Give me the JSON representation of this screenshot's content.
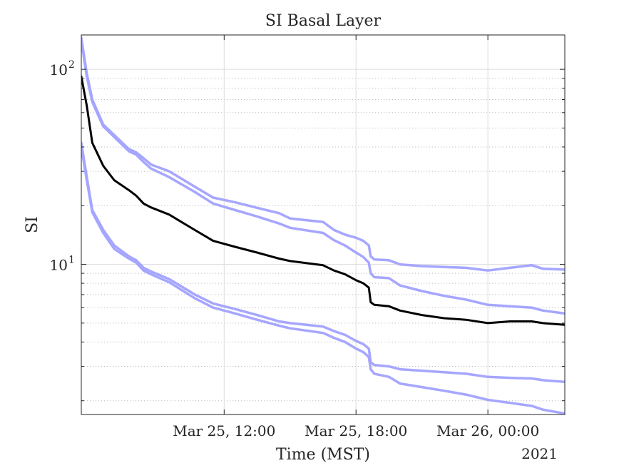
{
  "chart_data": {
    "type": "line",
    "title": "SI Basal Layer",
    "xlabel": "Time (MST)",
    "ylabel": "SI",
    "x_year_label": "2021",
    "x_range": [
      "2021-03-25T05:30",
      "2021-03-26T03:30"
    ],
    "x_ticks": [
      {
        "t": "2021-03-25T12:00",
        "label": "Mar 25, 12:00"
      },
      {
        "t": "2021-03-25T18:00",
        "label": "Mar 25, 18:00"
      },
      {
        "t": "2021-03-26T00:00",
        "label": "Mar 26, 00:00"
      }
    ],
    "y_scale": "log",
    "y_range": [
      1.7,
      150
    ],
    "y_ticks": [
      {
        "value": 10,
        "base": "10",
        "exp": "1"
      },
      {
        "value": 100,
        "base": "10",
        "exp": "2"
      }
    ],
    "grid": true,
    "colors": {
      "median": "#000000",
      "band": "#a6a6ff"
    },
    "series": [
      {
        "role": "upper-outer",
        "color": "#a6a6ff",
        "points": [
          [
            "2021-03-25T05:30",
            145
          ],
          [
            "2021-03-25T05:45",
            95
          ],
          [
            "2021-03-25T06:00",
            70
          ],
          [
            "2021-03-25T06:30",
            52
          ],
          [
            "2021-03-25T07:00",
            46
          ],
          [
            "2021-03-25T07:40",
            39
          ],
          [
            "2021-03-25T08:00",
            37.5
          ],
          [
            "2021-03-25T08:20",
            35
          ],
          [
            "2021-03-25T08:40",
            32.5
          ],
          [
            "2021-03-25T09:30",
            30
          ],
          [
            "2021-03-25T10:40",
            25
          ],
          [
            "2021-03-25T11:30",
            22
          ],
          [
            "2021-03-25T12:30",
            20.8
          ],
          [
            "2021-03-25T13:30",
            19.5
          ],
          [
            "2021-03-25T14:30",
            18.3
          ],
          [
            "2021-03-25T15:00",
            17.2
          ],
          [
            "2021-03-25T16:30",
            16.5
          ],
          [
            "2021-03-25T17:00",
            15
          ],
          [
            "2021-03-25T17:30",
            14.2
          ],
          [
            "2021-03-25T18:00",
            13.7
          ],
          [
            "2021-03-25T18:20",
            13.2
          ],
          [
            "2021-03-25T18:35",
            12.5
          ],
          [
            "2021-03-25T18:40",
            11
          ],
          [
            "2021-03-25T18:50",
            10.6
          ],
          [
            "2021-03-25T19:30",
            10.5
          ],
          [
            "2021-03-25T20:00",
            10
          ],
          [
            "2021-03-25T21:00",
            9.8
          ],
          [
            "2021-03-25T22:00",
            9.7
          ],
          [
            "2021-03-25T23:00",
            9.6
          ],
          [
            "2021-03-26T00:00",
            9.3
          ],
          [
            "2021-03-26T01:00",
            9.6
          ],
          [
            "2021-03-26T02:00",
            9.9
          ],
          [
            "2021-03-26T02:30",
            9.5
          ],
          [
            "2021-03-26T03:30",
            9.4
          ]
        ]
      },
      {
        "role": "upper-inner",
        "color": "#a6a6ff",
        "points": [
          [
            "2021-03-25T05:30",
            140
          ],
          [
            "2021-03-25T05:45",
            92
          ],
          [
            "2021-03-25T06:00",
            68
          ],
          [
            "2021-03-25T06:30",
            51
          ],
          [
            "2021-03-25T07:00",
            45
          ],
          [
            "2021-03-25T07:40",
            38
          ],
          [
            "2021-03-25T08:00",
            36.5
          ],
          [
            "2021-03-25T08:20",
            33.5
          ],
          [
            "2021-03-25T08:40",
            31
          ],
          [
            "2021-03-25T09:30",
            28
          ],
          [
            "2021-03-25T10:40",
            23.5
          ],
          [
            "2021-03-25T11:30",
            20.5
          ],
          [
            "2021-03-25T12:30",
            19
          ],
          [
            "2021-03-25T13:30",
            17.6
          ],
          [
            "2021-03-25T14:30",
            16.2
          ],
          [
            "2021-03-25T15:00",
            15.4
          ],
          [
            "2021-03-25T16:30",
            14.5
          ],
          [
            "2021-03-25T17:00",
            13.3
          ],
          [
            "2021-03-25T17:30",
            12.5
          ],
          [
            "2021-03-25T18:00",
            11.5
          ],
          [
            "2021-03-25T18:20",
            10.9
          ],
          [
            "2021-03-25T18:35",
            10.2
          ],
          [
            "2021-03-25T18:40",
            9
          ],
          [
            "2021-03-25T18:50",
            8.6
          ],
          [
            "2021-03-25T19:30",
            8.5
          ],
          [
            "2021-03-25T20:00",
            7.8
          ],
          [
            "2021-03-25T21:00",
            7.3
          ],
          [
            "2021-03-25T22:00",
            6.9
          ],
          [
            "2021-03-25T23:00",
            6.6
          ],
          [
            "2021-03-26T00:00",
            6.2
          ],
          [
            "2021-03-26T01:00",
            6.1
          ],
          [
            "2021-03-26T02:00",
            6.0
          ],
          [
            "2021-03-26T02:30",
            5.8
          ],
          [
            "2021-03-26T03:30",
            5.6
          ]
        ]
      },
      {
        "role": "median",
        "color": "#000000",
        "points": [
          [
            "2021-03-25T05:30",
            92
          ],
          [
            "2021-03-25T05:45",
            65
          ],
          [
            "2021-03-25T06:00",
            42
          ],
          [
            "2021-03-25T06:30",
            32
          ],
          [
            "2021-03-25T07:00",
            27
          ],
          [
            "2021-03-25T07:40",
            24
          ],
          [
            "2021-03-25T08:00",
            22.5
          ],
          [
            "2021-03-25T08:20",
            20.5
          ],
          [
            "2021-03-25T08:40",
            19.6
          ],
          [
            "2021-03-25T09:30",
            18
          ],
          [
            "2021-03-25T10:40",
            15
          ],
          [
            "2021-03-25T11:30",
            13.2
          ],
          [
            "2021-03-25T12:30",
            12.3
          ],
          [
            "2021-03-25T13:30",
            11.5
          ],
          [
            "2021-03-25T14:30",
            10.7
          ],
          [
            "2021-03-25T15:00",
            10.4
          ],
          [
            "2021-03-25T16:30",
            9.9
          ],
          [
            "2021-03-25T17:00",
            9.3
          ],
          [
            "2021-03-25T17:30",
            8.9
          ],
          [
            "2021-03-25T18:00",
            8.3
          ],
          [
            "2021-03-25T18:20",
            8.0
          ],
          [
            "2021-03-25T18:35",
            7.6
          ],
          [
            "2021-03-25T18:40",
            6.4
          ],
          [
            "2021-03-25T18:50",
            6.2
          ],
          [
            "2021-03-25T19:30",
            6.1
          ],
          [
            "2021-03-25T20:00",
            5.8
          ],
          [
            "2021-03-25T21:00",
            5.5
          ],
          [
            "2021-03-25T22:00",
            5.3
          ],
          [
            "2021-03-25T23:00",
            5.2
          ],
          [
            "2021-03-26T00:00",
            5.0
          ],
          [
            "2021-03-26T01:00",
            5.1
          ],
          [
            "2021-03-26T02:00",
            5.1
          ],
          [
            "2021-03-26T02:30",
            5.0
          ],
          [
            "2021-03-26T03:30",
            4.9
          ]
        ]
      },
      {
        "role": "lower-inner",
        "color": "#a6a6ff",
        "points": [
          [
            "2021-03-25T05:30",
            42
          ],
          [
            "2021-03-25T05:45",
            28
          ],
          [
            "2021-03-25T06:00",
            19
          ],
          [
            "2021-03-25T06:30",
            15
          ],
          [
            "2021-03-25T07:00",
            12.5
          ],
          [
            "2021-03-25T07:40",
            11
          ],
          [
            "2021-03-25T08:00",
            10.5
          ],
          [
            "2021-03-25T08:20",
            9.6
          ],
          [
            "2021-03-25T08:40",
            9.2
          ],
          [
            "2021-03-25T09:30",
            8.4
          ],
          [
            "2021-03-25T10:40",
            7
          ],
          [
            "2021-03-25T11:30",
            6.3
          ],
          [
            "2021-03-25T12:30",
            5.9
          ],
          [
            "2021-03-25T13:30",
            5.5
          ],
          [
            "2021-03-25T14:30",
            5.1
          ],
          [
            "2021-03-25T15:00",
            5.0
          ],
          [
            "2021-03-25T16:30",
            4.8
          ],
          [
            "2021-03-25T17:00",
            4.55
          ],
          [
            "2021-03-25T17:30",
            4.35
          ],
          [
            "2021-03-25T18:00",
            4.05
          ],
          [
            "2021-03-25T18:20",
            3.9
          ],
          [
            "2021-03-25T18:35",
            3.7
          ],
          [
            "2021-03-25T18:40",
            3.15
          ],
          [
            "2021-03-25T18:50",
            3.05
          ],
          [
            "2021-03-25T19:30",
            3.0
          ],
          [
            "2021-03-25T20:00",
            2.9
          ],
          [
            "2021-03-25T21:00",
            2.85
          ],
          [
            "2021-03-25T22:00",
            2.8
          ],
          [
            "2021-03-25T23:00",
            2.75
          ],
          [
            "2021-03-26T00:00",
            2.65
          ],
          [
            "2021-03-26T01:00",
            2.62
          ],
          [
            "2021-03-26T02:00",
            2.6
          ],
          [
            "2021-03-26T02:30",
            2.55
          ],
          [
            "2021-03-26T03:30",
            2.5
          ]
        ]
      },
      {
        "role": "lower-outer",
        "color": "#a6a6ff",
        "points": [
          [
            "2021-03-25T05:30",
            40
          ],
          [
            "2021-03-25T05:45",
            27
          ],
          [
            "2021-03-25T06:00",
            18.5
          ],
          [
            "2021-03-25T06:30",
            14.5
          ],
          [
            "2021-03-25T07:00",
            12
          ],
          [
            "2021-03-25T07:40",
            10.7
          ],
          [
            "2021-03-25T08:00",
            10.2
          ],
          [
            "2021-03-25T08:20",
            9.3
          ],
          [
            "2021-03-25T08:40",
            8.9
          ],
          [
            "2021-03-25T09:30",
            8.1
          ],
          [
            "2021-03-25T10:40",
            6.7
          ],
          [
            "2021-03-25T11:30",
            6.0
          ],
          [
            "2021-03-25T12:30",
            5.6
          ],
          [
            "2021-03-25T13:30",
            5.2
          ],
          [
            "2021-03-25T14:30",
            4.85
          ],
          [
            "2021-03-25T15:00",
            4.7
          ],
          [
            "2021-03-25T16:30",
            4.45
          ],
          [
            "2021-03-25T17:00",
            4.2
          ],
          [
            "2021-03-25T17:30",
            4.0
          ],
          [
            "2021-03-25T18:00",
            3.7
          ],
          [
            "2021-03-25T18:20",
            3.55
          ],
          [
            "2021-03-25T18:35",
            3.35
          ],
          [
            "2021-03-25T18:40",
            2.9
          ],
          [
            "2021-03-25T18:50",
            2.75
          ],
          [
            "2021-03-25T19:30",
            2.65
          ],
          [
            "2021-03-25T20:00",
            2.45
          ],
          [
            "2021-03-25T21:00",
            2.35
          ],
          [
            "2021-03-25T22:00",
            2.25
          ],
          [
            "2021-03-25T23:00",
            2.15
          ],
          [
            "2021-03-26T00:00",
            2.02
          ],
          [
            "2021-03-26T01:00",
            1.95
          ],
          [
            "2021-03-26T02:00",
            1.88
          ],
          [
            "2021-03-26T02:30",
            1.8
          ],
          [
            "2021-03-26T03:30",
            1.72
          ]
        ]
      }
    ]
  }
}
